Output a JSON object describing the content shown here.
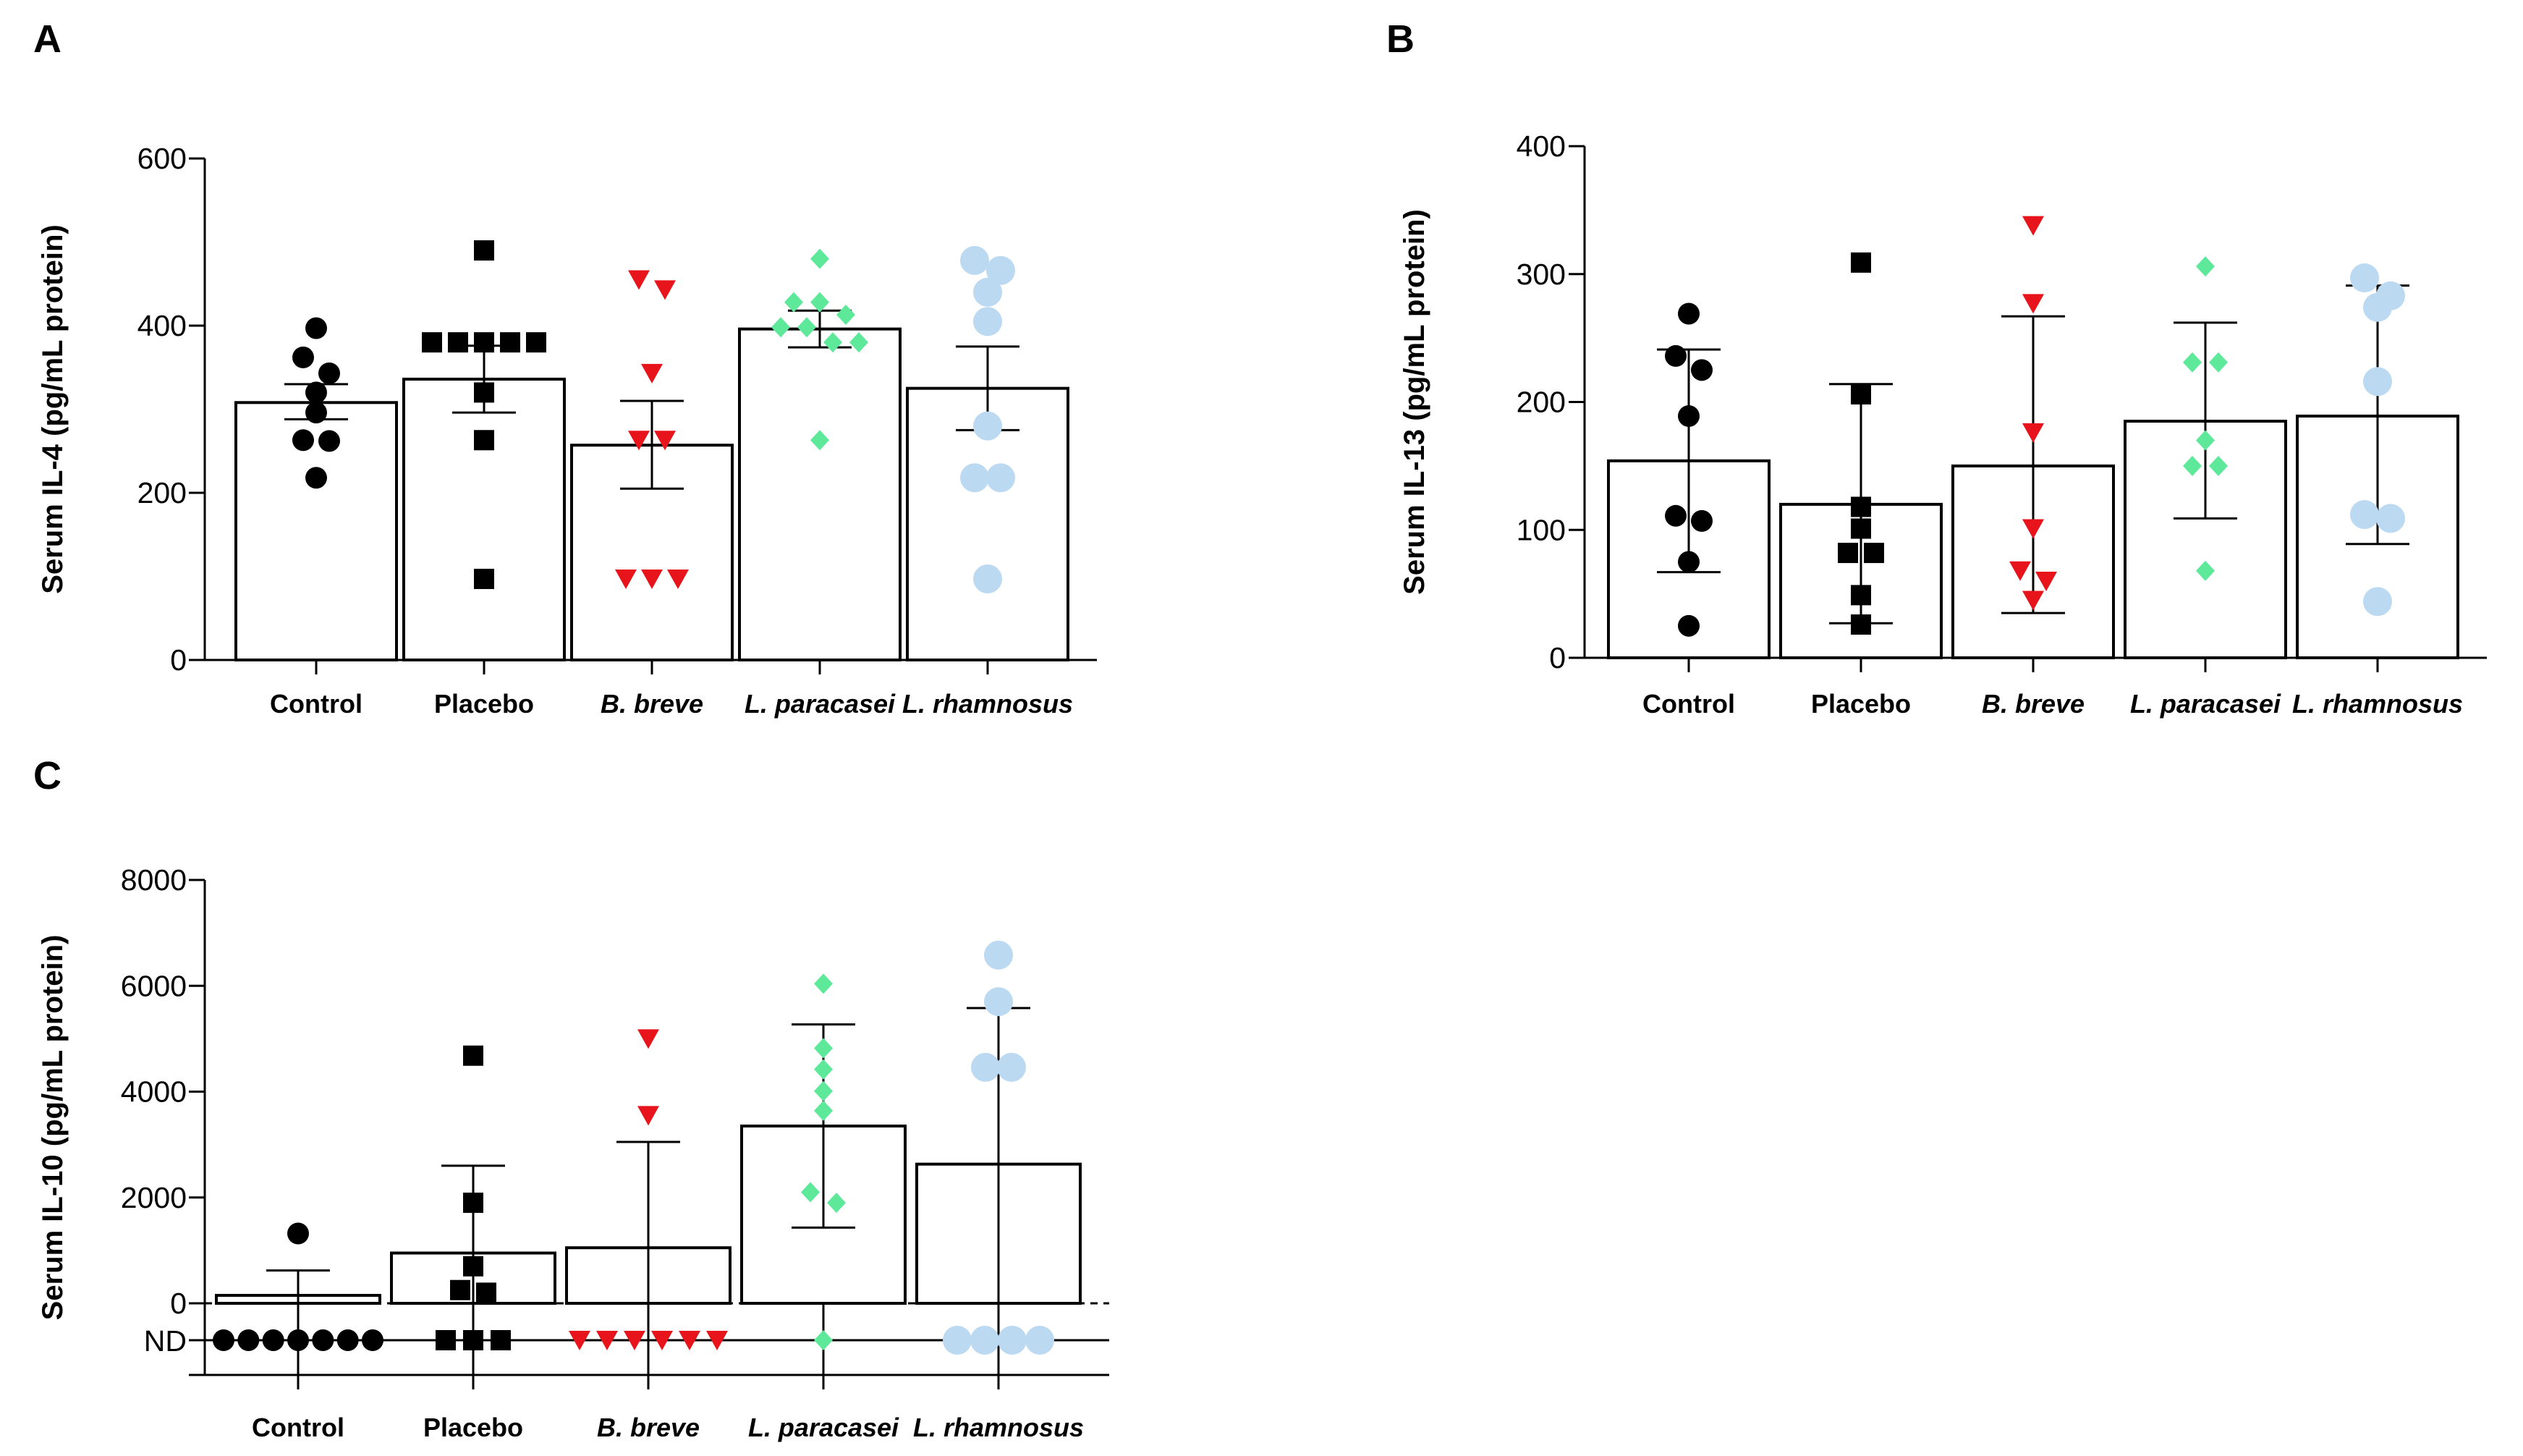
{
  "chart_data": [
    {
      "type": "bar",
      "panel": "A",
      "ylabel": "Serum IL-4 (pg/mL protein)",
      "ylim": [
        0,
        600
      ],
      "yticks": [
        0,
        200,
        400,
        600
      ],
      "categories": [
        "Control",
        "Placebo",
        "B. breve",
        "L. paracasei",
        "L. rhamnosus"
      ],
      "italic": [
        false,
        false,
        true,
        true,
        true
      ],
      "errorbar": "mean ± SEM",
      "series": [
        {
          "name": "Control",
          "color": "#000000",
          "marker": "circle",
          "mean": 308,
          "err_low": 288,
          "err_high": 330,
          "points": [
            397,
            362,
            343,
            320,
            296,
            263,
            262,
            218
          ]
        },
        {
          "name": "Placebo",
          "color": "#000000",
          "marker": "square",
          "mean": 336,
          "err_low": 296,
          "err_high": 376,
          "points": [
            490,
            380,
            380,
            380,
            380,
            380,
            320,
            263,
            97
          ]
        },
        {
          "name": "B. breve",
          "color": "#e8141b",
          "marker": "triangle-down",
          "mean": 257,
          "err_low": 205,
          "err_high": 310,
          "points": [
            455,
            443,
            343,
            263,
            263,
            97,
            97,
            97
          ]
        },
        {
          "name": "L. paracasei",
          "color": "#5ee89a",
          "marker": "diamond",
          "mean": 396,
          "err_low": 374,
          "err_high": 418,
          "points": [
            480,
            428,
            428,
            413,
            398,
            398,
            380,
            380,
            263
          ]
        },
        {
          "name": "L. rhamnosus",
          "color": "#bcd9f2",
          "marker": "circle-large",
          "mean": 325,
          "err_low": 275,
          "err_high": 375,
          "points": [
            478,
            466,
            440,
            405,
            280,
            218,
            218,
            97
          ]
        }
      ]
    },
    {
      "type": "bar",
      "panel": "B",
      "ylabel": "Serum IL-13 (pg/mL protein)",
      "ylim": [
        0,
        400
      ],
      "yticks": [
        0,
        100,
        200,
        300,
        400
      ],
      "categories": [
        "Control",
        "Placebo",
        "B. breve",
        "L. paracasei",
        "L. rhamnosus"
      ],
      "italic": [
        false,
        false,
        true,
        true,
        true
      ],
      "errorbar": "mean ± SD",
      "series": [
        {
          "name": "Control",
          "color": "#000000",
          "marker": "circle",
          "mean": 154,
          "err_low": 67,
          "err_high": 241,
          "points": [
            269,
            236,
            225,
            189,
            111,
            107,
            75,
            25
          ]
        },
        {
          "name": "Placebo",
          "color": "#000000",
          "marker": "square",
          "mean": 120,
          "err_low": 27,
          "err_high": 214,
          "points": [
            309,
            206,
            118,
            101,
            82,
            82,
            49,
            26
          ]
        },
        {
          "name": "B. breve",
          "color": "#e8141b",
          "marker": "triangle-down",
          "mean": 150,
          "err_low": 35,
          "err_high": 267,
          "points": [
            338,
            277,
            176,
            101,
            68,
            60,
            45
          ]
        },
        {
          "name": "L. paracasei",
          "color": "#5ee89a",
          "marker": "diamond",
          "mean": 185,
          "err_low": 109,
          "err_high": 262,
          "points": [
            306,
            231,
            231,
            170,
            150,
            150,
            68
          ]
        },
        {
          "name": "L. rhamnosus",
          "color": "#bcd9f2",
          "marker": "circle-large",
          "mean": 189,
          "err_low": 89,
          "err_high": 291,
          "points": [
            297,
            283,
            274,
            216,
            112,
            109,
            44
          ]
        }
      ]
    },
    {
      "type": "bar",
      "panel": "C",
      "ylabel": "Serum IL-10 (pg/mL protein)",
      "ylim": [
        0,
        8000
      ],
      "yticks": [
        0,
        2000,
        4000,
        6000,
        8000
      ],
      "nd_label": "ND",
      "categories": [
        "Control",
        "Placebo",
        "B. breve",
        "L. paracasei",
        "L. rhamnosus"
      ],
      "italic": [
        false,
        false,
        true,
        true,
        true
      ],
      "errorbar": "mean ± SD",
      "series": [
        {
          "name": "Control",
          "color": "#000000",
          "marker": "circle",
          "mean": 150,
          "err_low": 0,
          "err_high": 620,
          "points": [
            1320
          ],
          "nd_count": 7
        },
        {
          "name": "Placebo",
          "color": "#000000",
          "marker": "square",
          "mean": 950,
          "err_low": 0,
          "err_high": 2600,
          "points": [
            4680,
            1900,
            700,
            250,
            200
          ],
          "nd_count": 3
        },
        {
          "name": "B. breve",
          "color": "#e8141b",
          "marker": "triangle-down",
          "mean": 1050,
          "err_low": 0,
          "err_high": 3050,
          "points": [
            5000,
            3550
          ],
          "nd_count": 6
        },
        {
          "name": "L. paracasei",
          "color": "#5ee89a",
          "marker": "diamond",
          "mean": 3350,
          "err_low": 1430,
          "err_high": 5270,
          "points": [
            6040,
            4820,
            4420,
            4010,
            3640,
            2100,
            1900
          ],
          "nd_count": 1
        },
        {
          "name": "L. rhamnosus",
          "color": "#bcd9f2",
          "marker": "circle-large",
          "mean": 2630,
          "err_low": 0,
          "err_high": 5580,
          "points": [
            6580,
            5700,
            4460,
            4460
          ],
          "nd_count": 4
        }
      ]
    }
  ]
}
